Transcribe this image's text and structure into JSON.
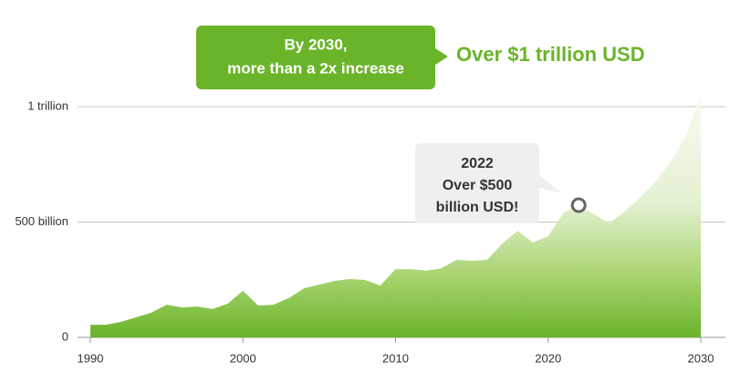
{
  "chart_data": {
    "type": "area",
    "x": [
      1990,
      1991,
      1992,
      1993,
      1994,
      1995,
      1996,
      1997,
      1998,
      1999,
      2000,
      2001,
      2002,
      2003,
      2004,
      2005,
      2006,
      2007,
      2008,
      2009,
      2010,
      2011,
      2012,
      2013,
      2014,
      2015,
      2016,
      2017,
      2018,
      2019,
      2020,
      2021,
      2022,
      2023,
      2024,
      2025,
      2026,
      2027,
      2028,
      2029,
      2030
    ],
    "values": [
      55,
      55,
      67,
      87,
      107,
      142,
      130,
      134,
      123,
      146,
      202,
      138,
      142,
      170,
      213,
      229,
      245,
      253,
      249,
      225,
      296,
      296,
      289,
      300,
      336,
      332,
      336,
      407,
      462,
      411,
      439,
      541,
      573,
      534,
      494,
      545,
      605,
      672,
      759,
      870,
      1055
    ],
    "color": "#6ab42a",
    "xlim": [
      1990,
      2030
    ],
    "xticks": [
      1990,
      2000,
      2010,
      2020,
      2030
    ],
    "ylim": [
      0,
      1000
    ],
    "yticks": [
      0,
      {
        "value": 500,
        "label": "500 billion"
      },
      {
        "value": 1000,
        "label": "1 trillion"
      }
    ],
    "grid": true,
    "highlight_index": 32,
    "annotations": [
      {
        "lines": [
          "By 2030,",
          "more than a 2x increase"
        ]
      },
      {
        "text": "Over $1 trillion USD"
      },
      {
        "lines": [
          "2022",
          "Over $500",
          "billion USD!"
        ]
      }
    ]
  }
}
